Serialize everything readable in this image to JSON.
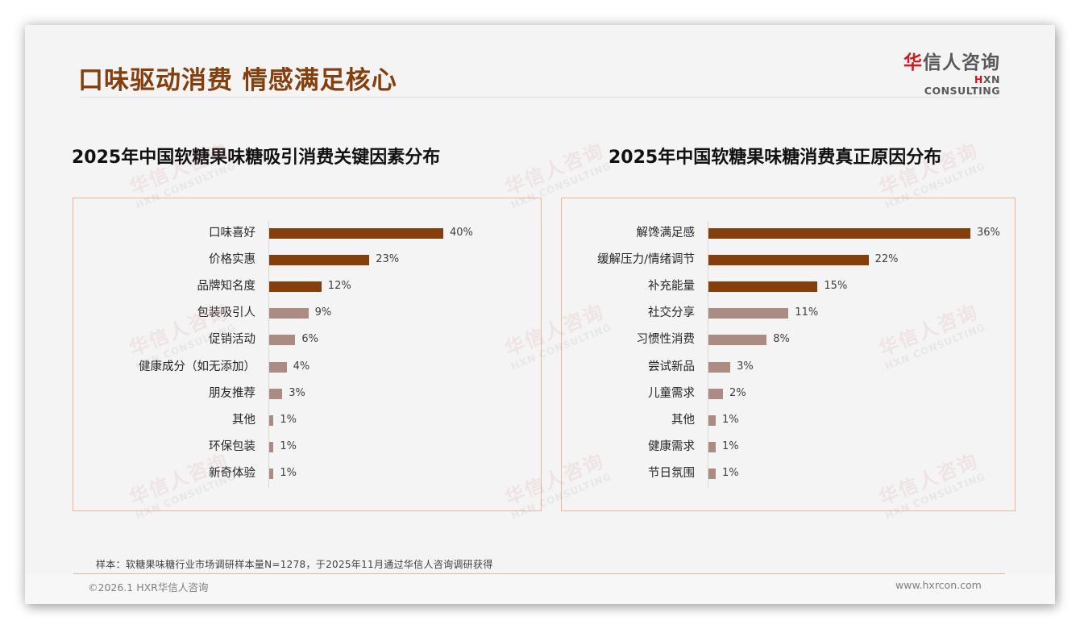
{
  "header": {
    "title": "口味驱动消费 情感满足核心",
    "logo_cn_first": "华",
    "logo_cn_rest": "信人咨询",
    "logo_en_first": "H",
    "logo_en_rest": "XN CONSULTING"
  },
  "watermark": {
    "cn": "华信人咨询",
    "en": "HXN CONSULTING"
  },
  "colors": {
    "title": "#843f0d",
    "bar_primary": "#843f0d",
    "bar_secondary": "#ab8b82",
    "panel_border": "#ecb596",
    "logo_red": "#d0191f"
  },
  "chart_data": [
    {
      "type": "bar",
      "orientation": "horizontal",
      "title": "2025年中国软糖果味糖吸引消费关键因素分布",
      "categories": [
        "口味喜好",
        "价格实惠",
        "品牌知名度",
        "包装吸引人",
        "促销活动",
        "健康成分（如无添加）",
        "朋友推荐",
        "其他",
        "环保包装",
        "新奇体验"
      ],
      "values": [
        40,
        23,
        12,
        9,
        6,
        4,
        3,
        1,
        1,
        1
      ],
      "value_labels": [
        "40%",
        "23%",
        "12%",
        "9%",
        "6%",
        "4%",
        "3%",
        "1%",
        "1%",
        "1%"
      ],
      "highlight_top_n": 3,
      "unit": "%",
      "xlabel": "",
      "ylabel": "",
      "grid": false,
      "legend": null
    },
    {
      "type": "bar",
      "orientation": "horizontal",
      "title": "2025年中国软糖果味糖消费真正原因分布",
      "categories": [
        "解馋满足感",
        "缓解压力/情绪调节",
        "补充能量",
        "社交分享",
        "习惯性消费",
        "尝试新品",
        "儿童需求",
        "其他",
        "健康需求",
        "节日氛围"
      ],
      "values": [
        36,
        22,
        15,
        11,
        8,
        3,
        2,
        1,
        1,
        1
      ],
      "value_labels": [
        "36%",
        "22%",
        "15%",
        "11%",
        "8%",
        "3%",
        "2%",
        "1%",
        "1%",
        "1%"
      ],
      "highlight_top_n": 3,
      "unit": "%",
      "xlabel": "",
      "ylabel": "",
      "grid": false,
      "legend": null
    }
  ],
  "footer": {
    "source": "样本：软糖果味糖行业市场调研样本量N=1278，于2025年11月通过华信人咨询调研获得",
    "copyright": "©2026.1 HXR华信人咨询",
    "website": "www.hxrcon.com"
  }
}
